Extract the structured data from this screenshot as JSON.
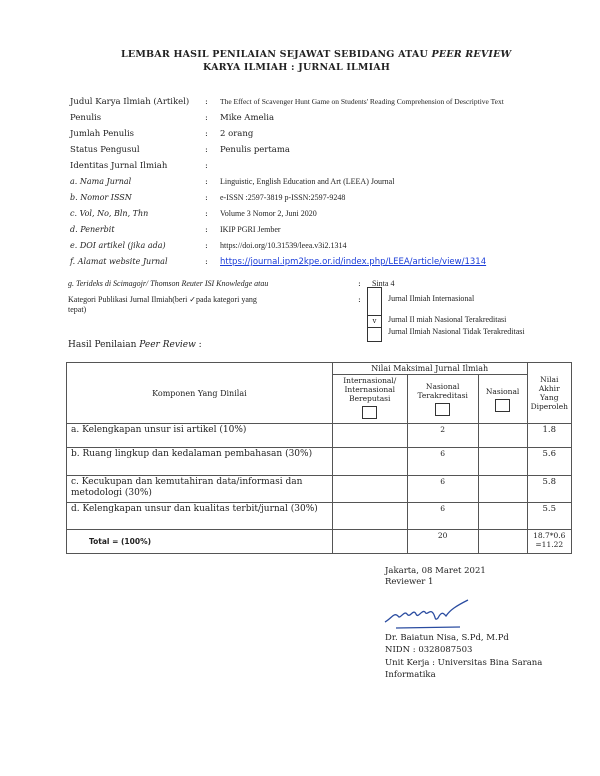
{
  "title": {
    "line1_prefix": "LEMBAR HASIL PENILAIAN SEJAWAT SEBIDANG ATAU ",
    "line1_italic": "PEER REVIEW",
    "line2": "KARYA ILMIAH  : JURNAL ILMIAH"
  },
  "fields": [
    {
      "label": "Judul Karya Ilmiah (Artikel)",
      "value": "The Effect of Scavenger Hunt Game on Students' Reading Comprehension of Descriptive Text"
    },
    {
      "label": "Penulis",
      "value": "Mike Amelia"
    },
    {
      "label": "Jumlah Penulis",
      "value": " 2 orang"
    },
    {
      "label": "Status Pengusul",
      "value": "Penulis pertama"
    },
    {
      "label": "Identitas Jurnal Ilmiah",
      "value": ""
    },
    {
      "label": "a. Nama Jurnal",
      "value": "Linguistic, English Education and Art (LEEA) Journal"
    },
    {
      "label": "b. Nomor ISSN",
      "value": "e-ISSN :2597-3819 p-ISSN:2597-9248"
    },
    {
      "label": "c. Vol, No, Bln, Thn",
      "value": "Volume 3 Nomor 2, Juni 2020"
    },
    {
      "label": "d. Penerbit",
      "value": "IKIP PGRI Jember"
    },
    {
      "label": "e. DOI artikel (jika ada)",
      "value": "https://doi.org/10.31539/leea.v3i2.1314"
    },
    {
      "label": "f. Alamat website Jurnal",
      "value": "https://journal.ipm2kpe.or.id/index.php/LEEA/article/view/1314"
    }
  ],
  "colon": ":",
  "index": {
    "label": "g. Terideks di Scimagojr/ Thomson Reuter ISI Knowledge atau",
    "value": "Sinta 4"
  },
  "kategori": {
    "label_line1": "Kategori Publikasi Jurnal Ilmiah(beri ✓pada kategori yang",
    "label_line2": "tepat)",
    "options": [
      {
        "label": "Jurnal Ilmiah Internasional",
        "mark": ""
      },
      {
        "label": "Jurnal Il miah Nasional Terakreditasi",
        "mark": "v"
      },
      {
        "label": "Jurnal Ilmiah Nasional Tidak Terakreditasi",
        "mark": ""
      }
    ]
  },
  "hasil": {
    "prefix": "Hasil Penilaian ",
    "italic": "Peer Review",
    "suffix": " :"
  },
  "table": {
    "komponen": "Komponen Yang Dinilai",
    "nilai_maks": "Nilai Maksimal Jurnal Ilmiah",
    "col_int": "Internasional/ Internasional Bereputasi",
    "col_nas_akr": "Nasional Terakreditasi",
    "col_nas": "Nasional",
    "col_akhir": "Nilai Akhir Yang Diperoleh",
    "rows": [
      {
        "komponen": "a.  Kelengkapan unsur isi artikel (10%)",
        "int": "",
        "nas_akr": "2",
        "nas": "",
        "akhir": "1.8"
      },
      {
        "komponen": "b.  Ruang lingkup dan kedalaman pembahasan (30%)",
        "int": "",
        "nas_akr": "6",
        "nas": "",
        "akhir": "5.6"
      },
      {
        "komponen": "c.  Kecukupan dan kemutahiran data/informasi dan metodologi (30%)",
        "int": "",
        "nas_akr": "6",
        "nas": "",
        "akhir": "5.8"
      },
      {
        "komponen": "d.  Kelengkapan unsur dan kualitas terbit/jurnal (30%)",
        "int": "",
        "nas_akr": "6",
        "nas": "",
        "akhir": "5.5"
      }
    ],
    "total": {
      "label": "Total   = (100%)",
      "nas_akr": "20",
      "akhir": "18.7*0.6 =11.22"
    }
  },
  "signature": {
    "place_date": "Jakarta, 08 Maret 2021",
    "role": "Reviewer 1",
    "name": "Dr. Baiatun Nisa, S.Pd, M.Pd",
    "nidn": "NIDN : 0328087503",
    "unit": "Unit Kerja : Universitas Bina Sarana Informatika"
  }
}
